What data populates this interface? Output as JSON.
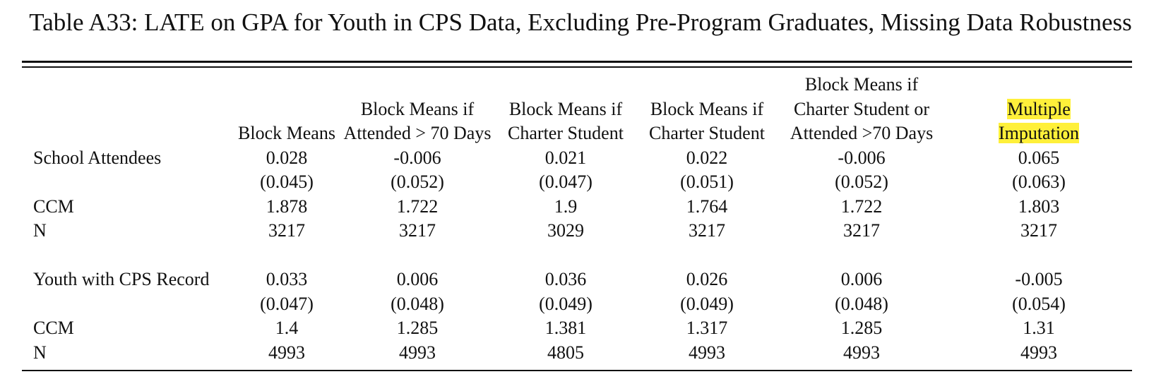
{
  "title": "Table A33: LATE on GPA for Youth in CPS Data, Excluding Pre-Program Graduates, Missing Data Robustness",
  "header": {
    "row1": [
      "",
      "",
      "",
      "",
      "",
      "Block Means if",
      ""
    ],
    "row2": [
      "",
      "",
      "Block Means if",
      "Block Means if",
      "Block Means if",
      "Charter Student or",
      "Multiple"
    ],
    "row3": [
      "",
      "Block Means",
      "Attended > 70 Days",
      "Charter Student",
      "Charter Student",
      "Attended >70 Days",
      "Imputation"
    ]
  },
  "panels": [
    {
      "label": "School Attendees",
      "estimates": [
        "0.028",
        "-0.006",
        "0.021",
        "0.022",
        "-0.006",
        "0.065"
      ],
      "std_errors": [
        "(0.045)",
        "(0.052)",
        "(0.047)",
        "(0.051)",
        "(0.052)",
        "(0.063)"
      ],
      "ccm_label": "CCM",
      "ccm": [
        "1.878",
        "1.722",
        "1.9",
        "1.764",
        "1.722",
        "1.803"
      ],
      "n_label": "N",
      "n": [
        "3217",
        "3217",
        "3029",
        "3217",
        "3217",
        "3217"
      ]
    },
    {
      "label": "Youth with CPS Record",
      "estimates": [
        "0.033",
        "0.006",
        "0.036",
        "0.026",
        "0.006",
        "-0.005"
      ],
      "std_errors": [
        "(0.047)",
        "(0.048)",
        "(0.049)",
        "(0.049)",
        "(0.048)",
        "(0.054)"
      ],
      "ccm_label": "CCM",
      "ccm": [
        "1.4",
        "1.285",
        "1.381",
        "1.317",
        "1.285",
        "1.31"
      ],
      "n_label": "N",
      "n": [
        "4993",
        "4993",
        "4805",
        "4993",
        "4993",
        "4993"
      ]
    }
  ],
  "highlight_color": "#fff03a"
}
